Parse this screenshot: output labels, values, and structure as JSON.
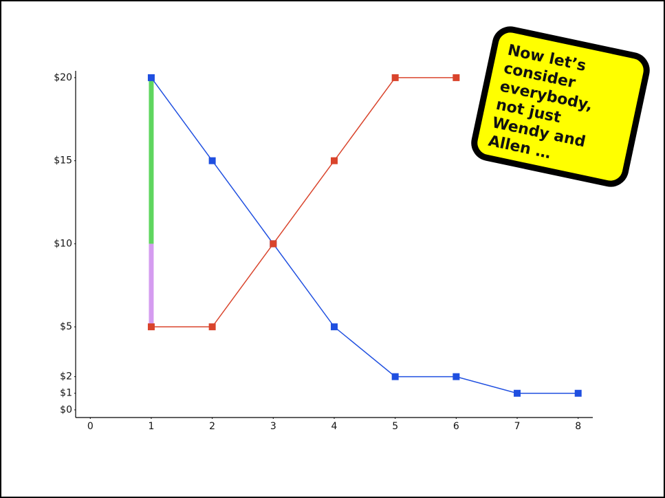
{
  "chart_data": {
    "type": "line",
    "xlim": [
      -0.24,
      8.24
    ],
    "xticks": [
      0,
      1,
      2,
      3,
      4,
      5,
      6,
      7,
      8
    ],
    "ylim": [
      -0.46,
      20.41
    ],
    "yticks": [
      {
        "value": 0,
        "label": "$0"
      },
      {
        "value": 1,
        "label": "$1"
      },
      {
        "value": 2,
        "label": "$2"
      },
      {
        "value": 5,
        "label": "$5"
      },
      {
        "value": 10,
        "label": "$10"
      },
      {
        "value": 15,
        "label": "$15"
      },
      {
        "value": 20,
        "label": "$20"
      }
    ],
    "series": [
      {
        "color": "#1f4fe0",
        "x": [
          1,
          2,
          3,
          4,
          5,
          6,
          7,
          8
        ],
        "values": [
          20,
          15,
          10,
          5,
          2,
          2,
          1,
          1
        ]
      },
      {
        "color": "#d9442c",
        "x": [
          1,
          2,
          3,
          4,
          5,
          6
        ],
        "values": [
          5,
          5,
          10,
          15,
          20,
          20
        ]
      }
    ],
    "range_bars": [
      {
        "x": 1,
        "from": 5,
        "to": 10,
        "color": "#d59cf0"
      },
      {
        "x": 1,
        "from": 10,
        "to": 20,
        "color": "#5fd65f"
      }
    ],
    "annotation": [
      "Now let’s",
      "consider",
      "everybody,",
      "not just",
      "Wendy and",
      "Allen …"
    ]
  }
}
